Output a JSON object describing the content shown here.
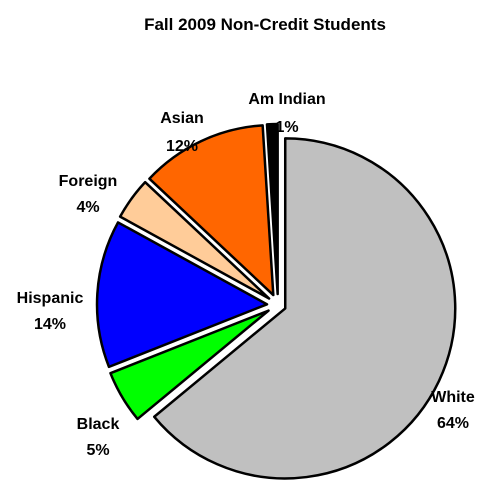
{
  "chart_data": {
    "type": "pie",
    "title": "Fall 2009 Non-Credit Students",
    "slices": [
      {
        "name": "White",
        "value": 64,
        "label": "64%",
        "color": "#c0c0c0"
      },
      {
        "name": "Black",
        "value": 5,
        "label": "5%",
        "color": "#00ff00"
      },
      {
        "name": "Hispanic",
        "value": 14,
        "label": "14%",
        "color": "#0000ff"
      },
      {
        "name": "Foreign",
        "value": 4,
        "label": "4%",
        "color": "#ffcc99"
      },
      {
        "name": "Asian",
        "value": 12,
        "label": "12%",
        "color": "#ff6600"
      },
      {
        "name": "Am Indian",
        "value": 1,
        "label": "1%",
        "color": "#000000"
      }
    ],
    "exploded": true,
    "legend": "none",
    "outline_color": "#000000"
  }
}
